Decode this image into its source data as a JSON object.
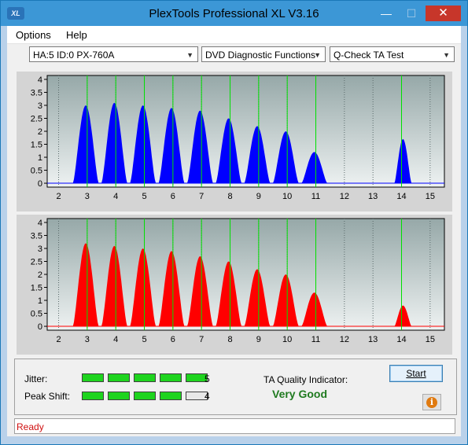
{
  "window": {
    "title": "PlexTools Professional XL V3.16",
    "icon_text": "XL",
    "min_glyph": "—",
    "max_glyph": "☐",
    "close_glyph": "✕"
  },
  "menu": {
    "options": "Options",
    "help": "Help"
  },
  "toolbar": {
    "drive": "HA:5 ID:0  PX-760A",
    "function": "DVD Diagnostic Functions",
    "test": "Q-Check TA Test"
  },
  "chart_data": [
    {
      "type": "area",
      "title": "",
      "series_color": "#0000ff",
      "x_ticks": [
        2,
        3,
        4,
        5,
        6,
        7,
        8,
        9,
        10,
        11,
        12,
        13,
        14,
        15
      ],
      "y_ticks": [
        0,
        0.5,
        1,
        1.5,
        2,
        2.5,
        3,
        3.5,
        4
      ],
      "xlim": [
        1.6,
        15.5
      ],
      "ylim": [
        -0.15,
        4.15
      ],
      "green_lines": [
        3,
        4,
        5,
        6,
        7,
        8,
        9,
        10,
        11,
        14
      ],
      "peaks": [
        {
          "x": 3,
          "height": 3.0
        },
        {
          "x": 4,
          "height": 3.1
        },
        {
          "x": 5,
          "height": 3.0
        },
        {
          "x": 6,
          "height": 2.9
        },
        {
          "x": 7,
          "height": 2.8
        },
        {
          "x": 8,
          "height": 2.5
        },
        {
          "x": 9,
          "height": 2.2
        },
        {
          "x": 10,
          "height": 2.0
        },
        {
          "x": 11,
          "height": 1.2
        },
        {
          "x": 14,
          "height": 1.7
        }
      ]
    },
    {
      "type": "area",
      "title": "",
      "series_color": "#ff0000",
      "x_ticks": [
        2,
        3,
        4,
        5,
        6,
        7,
        8,
        9,
        10,
        11,
        12,
        13,
        14,
        15
      ],
      "y_ticks": [
        0,
        0.5,
        1,
        1.5,
        2,
        2.5,
        3,
        3.5,
        4
      ],
      "xlim": [
        1.6,
        15.5
      ],
      "ylim": [
        -0.15,
        4.15
      ],
      "green_lines": [
        3,
        4,
        5,
        6,
        7,
        8,
        9,
        10,
        11,
        14
      ],
      "peaks": [
        {
          "x": 3,
          "height": 3.2
        },
        {
          "x": 4,
          "height": 3.1
        },
        {
          "x": 5,
          "height": 3.0
        },
        {
          "x": 6,
          "height": 2.9
        },
        {
          "x": 7,
          "height": 2.7
        },
        {
          "x": 8,
          "height": 2.5
        },
        {
          "x": 9,
          "height": 2.2
        },
        {
          "x": 10,
          "height": 2.0
        },
        {
          "x": 11,
          "height": 1.3
        },
        {
          "x": 14,
          "height": 0.8
        }
      ]
    }
  ],
  "results": {
    "jitter_label": "Jitter:",
    "jitter_value": "5",
    "jitter_level": 5,
    "peak_shift_label": "Peak Shift:",
    "peak_shift_value": "4",
    "peak_shift_level": 4,
    "meter_segments": 5,
    "ta_label": "TA Quality Indicator:",
    "ta_value": "Very Good",
    "start_label": "Start",
    "info_glyph": "i"
  },
  "status": {
    "text": "Ready"
  }
}
